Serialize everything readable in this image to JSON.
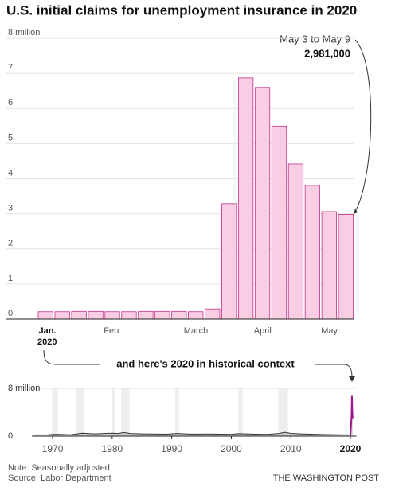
{
  "chart_data": [
    {
      "type": "bar",
      "title": "U.S. initial claims for unemployment insurance in 2020",
      "categories": [
        "Jan.",
        null,
        null,
        null,
        "Feb.",
        null,
        null,
        null,
        null,
        "March",
        null,
        null,
        null,
        "April",
        null,
        null,
        null,
        "May",
        null
      ],
      "year_label": "2020",
      "values": [
        0.21,
        0.21,
        0.22,
        0.22,
        0.21,
        0.21,
        0.22,
        0.22,
        0.22,
        0.21,
        0.29,
        3.29,
        6.87,
        6.6,
        5.5,
        4.42,
        3.81,
        3.06,
        2.981
      ],
      "color": "#f9cde4",
      "edge_color": "#c2338a",
      "ylim": [
        0,
        8
      ],
      "yticks": [
        0,
        1,
        2,
        3,
        4,
        5,
        6,
        7,
        {
          "value": 8,
          "label": "8 million"
        }
      ],
      "grid": true,
      "annotation": {
        "period": "May 3 to May 9",
        "value": "2,981,000"
      }
    },
    {
      "type": "line",
      "annotation": "and here's 2020 in historical context",
      "x": [
        1967,
        1969,
        1970,
        1971,
        1973,
        1975,
        1977,
        1980,
        1981,
        1982,
        1983,
        1985,
        1989,
        1991,
        1993,
        1996,
        2000,
        2001,
        2002,
        2004,
        2006,
        2008,
        2009,
        2010,
        2012,
        2015,
        2019,
        2020,
        2020.2,
        2020.25,
        2020.3,
        2020.37
      ],
      "values": [
        0.22,
        0.2,
        0.3,
        0.29,
        0.24,
        0.5,
        0.38,
        0.5,
        0.45,
        0.62,
        0.45,
        0.39,
        0.33,
        0.45,
        0.35,
        0.36,
        0.3,
        0.42,
        0.4,
        0.34,
        0.31,
        0.45,
        0.65,
        0.47,
        0.37,
        0.28,
        0.21,
        0.21,
        3.29,
        6.87,
        4.42,
        2.981
      ],
      "color": "#9e1a8c",
      "area_color": "#b5b5b5",
      "recessions": [
        [
          1969.9,
          1970.9
        ],
        [
          1973.9,
          1975.2
        ],
        [
          1980.0,
          1980.5
        ],
        [
          1981.5,
          1982.9
        ],
        [
          1990.6,
          1991.2
        ],
        [
          2001.2,
          2001.9
        ],
        [
          2007.9,
          2009.5
        ]
      ],
      "recession_color": "#eeeeee",
      "xlim": [
        1967,
        2021
      ],
      "xticks": [
        1970,
        1980,
        1990,
        2000,
        2010,
        2020
      ],
      "ylim": [
        0,
        8
      ],
      "yticks": [
        0,
        {
          "value": 8,
          "label": "8 million"
        }
      ]
    }
  ],
  "footer": {
    "note": "Note: Seasonally adjusted",
    "source": "Source: Labor Department",
    "credit": "THE WASHINGTON POST"
  }
}
